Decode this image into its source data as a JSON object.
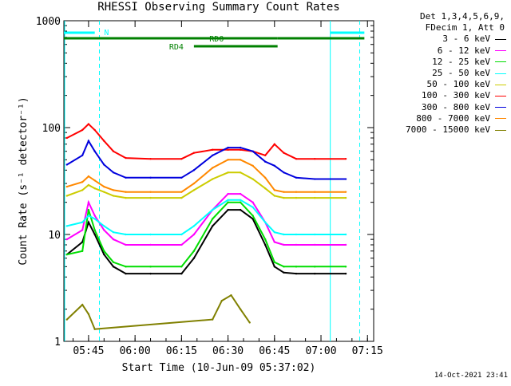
{
  "chart_data": {
    "type": "line",
    "title": "RHESSI Observing Summary Count Rates",
    "xlabel": "Start Time (10-Jun-09 05:37:02)",
    "ylabel": "Count Rate (s⁻¹ detector⁻¹)",
    "yscale": "log",
    "ylim": [
      1,
      1000
    ],
    "xlim": [
      "05:37:02",
      "07:17:00"
    ],
    "x_ticks": [
      "05:45",
      "06:00",
      "06:15",
      "06:30",
      "06:45",
      "07:00",
      "07:15"
    ],
    "y_ticks": [
      "1",
      "10",
      "100",
      "1000"
    ],
    "legend_header": [
      "Det 1,3,4,5,6,9,",
      "FDecim 1, Att 0"
    ],
    "legend_placement": "right",
    "series": [
      {
        "name": "3 - 6 keV",
        "color": "#000000",
        "x": [
          "05:38",
          "05:43",
          "05:45",
          "05:47",
          "05:50",
          "05:53",
          "05:57",
          "06:05",
          "06:15",
          "06:19",
          "06:25",
          "06:30",
          "06:34",
          "06:38",
          "06:42",
          "06:45",
          "06:48",
          "06:52",
          "06:58",
          "07:08"
        ],
        "y": [
          6.5,
          8.5,
          13,
          10,
          6.5,
          5,
          4.3,
          4.3,
          4.3,
          6,
          12,
          17,
          17,
          14,
          8,
          5,
          4.4,
          4.3,
          4.3,
          4.3
        ]
      },
      {
        "name": "6 - 12 keV",
        "color": "#ff00ff",
        "x": [
          "05:38",
          "05:43",
          "05:45",
          "05:47",
          "05:50",
          "05:53",
          "05:57",
          "06:05",
          "06:15",
          "06:19",
          "06:25",
          "06:30",
          "06:34",
          "06:38",
          "06:42",
          "06:45",
          "06:48",
          "06:52",
          "06:58",
          "07:08"
        ],
        "y": [
          9,
          11,
          20,
          15,
          11,
          9,
          8,
          8,
          8,
          10,
          17,
          24,
          24,
          20,
          13,
          8.5,
          8,
          8,
          8,
          8
        ]
      },
      {
        "name": "12 - 25 keV",
        "color": "#00dd00",
        "x": [
          "05:38",
          "05:43",
          "05:45",
          "05:47",
          "05:50",
          "05:53",
          "05:57",
          "06:05",
          "06:15",
          "06:19",
          "06:25",
          "06:30",
          "06:34",
          "06:38",
          "06:42",
          "06:45",
          "06:48",
          "06:52",
          "06:58",
          "07:08"
        ],
        "y": [
          6.5,
          7,
          17,
          11,
          7,
          5.5,
          5,
          5,
          5,
          7,
          14,
          20,
          20,
          15,
          9,
          5.5,
          5,
          5,
          5,
          5
        ]
      },
      {
        "name": "25 - 50 keV",
        "color": "#00ffff",
        "x": [
          "05:38",
          "05:43",
          "05:45",
          "05:47",
          "05:50",
          "05:53",
          "05:57",
          "06:05",
          "06:15",
          "06:19",
          "06:25",
          "06:30",
          "06:34",
          "06:38",
          "06:42",
          "06:45",
          "06:48",
          "06:52",
          "06:58",
          "07:08"
        ],
        "y": [
          12,
          13,
          15,
          14,
          12,
          10.5,
          10,
          10,
          10,
          12,
          17,
          21,
          21,
          18,
          13,
          10.5,
          10,
          10,
          10,
          10
        ]
      },
      {
        "name": "50 - 100 keV",
        "color": "#cccc00",
        "x": [
          "05:38",
          "05:43",
          "05:45",
          "05:47",
          "05:50",
          "05:53",
          "05:57",
          "06:05",
          "06:15",
          "06:19",
          "06:25",
          "06:30",
          "06:34",
          "06:38",
          "06:42",
          "06:45",
          "06:48",
          "06:52",
          "06:58",
          "07:08"
        ],
        "y": [
          23,
          26,
          29,
          27,
          25,
          23,
          22,
          22,
          22,
          26,
          33,
          38,
          38,
          33,
          27,
          23,
          22,
          22,
          22,
          22
        ]
      },
      {
        "name": "100 - 300 keV",
        "color": "#ff0000",
        "x": [
          "05:38",
          "05:43",
          "05:45",
          "05:47",
          "05:50",
          "05:53",
          "05:57",
          "06:05",
          "06:15",
          "06:19",
          "06:25",
          "06:30",
          "06:34",
          "06:38",
          "06:42",
          "06:45",
          "06:48",
          "06:52",
          "06:58",
          "07:08"
        ],
        "y": [
          80,
          95,
          108,
          95,
          75,
          60,
          52,
          51,
          51,
          58,
          62,
          62,
          62,
          60,
          55,
          70,
          58,
          51,
          51,
          51
        ]
      },
      {
        "name": "300 - 800 keV",
        "color": "#0000dd",
        "x": [
          "05:38",
          "05:43",
          "05:45",
          "05:47",
          "05:50",
          "05:53",
          "05:57",
          "06:05",
          "06:15",
          "06:19",
          "06:25",
          "06:30",
          "06:34",
          "06:38",
          "06:42",
          "06:45",
          "06:48",
          "06:52",
          "06:58",
          "07:08"
        ],
        "y": [
          45,
          55,
          75,
          60,
          45,
          38,
          34,
          34,
          34,
          40,
          55,
          65,
          65,
          60,
          48,
          44,
          38,
          34,
          33,
          33
        ]
      },
      {
        "name": "800 - 7000 keV",
        "color": "#ff8800",
        "x": [
          "05:38",
          "05:43",
          "05:45",
          "05:47",
          "05:50",
          "05:53",
          "05:57",
          "06:05",
          "06:15",
          "06:19",
          "06:25",
          "06:30",
          "06:34",
          "06:38",
          "06:42",
          "06:45",
          "06:48",
          "06:52",
          "06:58",
          "07:08"
        ],
        "y": [
          28,
          31,
          35,
          32,
          28,
          26,
          25,
          25,
          25,
          30,
          42,
          50,
          50,
          44,
          34,
          26,
          25,
          25,
          25,
          25
        ]
      },
      {
        "name": "7000 - 15000 keV",
        "color": "#808000",
        "x": [
          "05:38",
          "05:43",
          "05:45",
          "05:47",
          "06:25",
          "06:28",
          "06:31",
          "06:34",
          "06:37"
        ],
        "y": [
          1.6,
          2.2,
          1.8,
          1.3,
          1.6,
          2.4,
          2.7,
          2.0,
          1.5
        ]
      }
    ],
    "flags": [
      {
        "label": "N",
        "color": "#00ffff"
      },
      {
        "label": "RD0",
        "color": "#008000"
      },
      {
        "label": "RD4",
        "color": "#008000"
      }
    ],
    "footer_stamp": "14-Oct-2021 23:41"
  }
}
